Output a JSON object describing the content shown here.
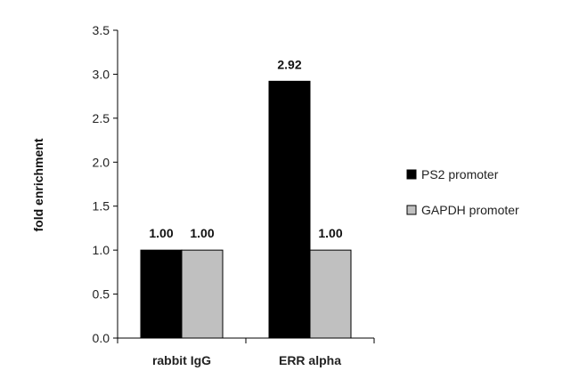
{
  "chart_data": {
    "type": "bar",
    "categories": [
      "rabbit IgG",
      "ERR alpha"
    ],
    "series": [
      {
        "name": "PS2 promoter",
        "values": [
          1.0,
          2.92
        ],
        "labels": [
          "1.00",
          "2.92"
        ],
        "color": "#000000"
      },
      {
        "name": "GAPDH promoter",
        "values": [
          1.0,
          1.0
        ],
        "labels": [
          "1.00",
          "1.00"
        ],
        "color": "#c0c0c0"
      }
    ],
    "title": "",
    "xlabel": "",
    "ylabel": "fold enrichment",
    "ylim": [
      0,
      3.5
    ],
    "yticks": [
      "0.0",
      "0.5",
      "1.0",
      "1.5",
      "2.0",
      "2.5",
      "3.0",
      "3.5"
    ],
    "grid": false,
    "legend_position": "right"
  }
}
